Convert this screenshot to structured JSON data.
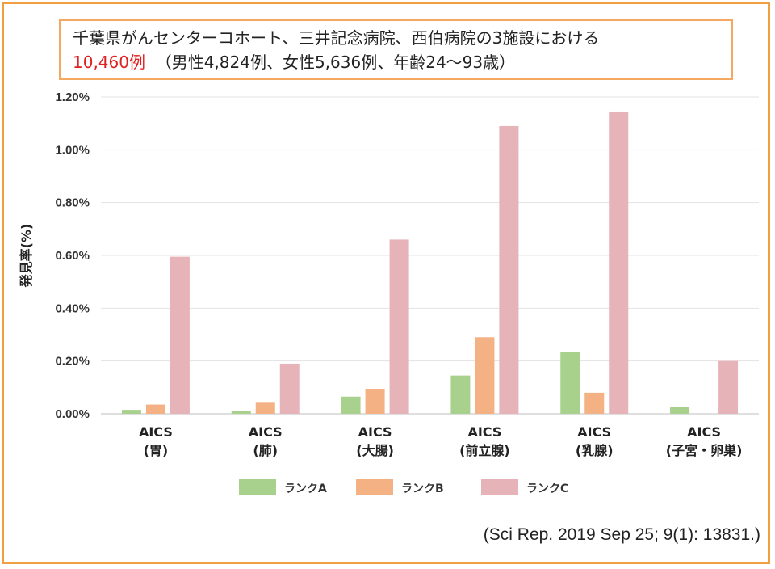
{
  "header": {
    "line1": "千葉県がんセンターコホート、三井記念病院、西伯病院の3施設における",
    "count_highlight": "10,460例",
    "line2_rest": "（男性4,824例、女性5,636例、年齢24〜93歳）"
  },
  "citation": "(Sci Rep. 2019 Sep 25; 9(1): 13831.)",
  "chart_data": {
    "type": "bar",
    "title": "",
    "xlabel": "",
    "ylabel": "発見率(%)",
    "ylim": [
      0,
      1.2
    ],
    "yticks": [
      0,
      0.2,
      0.4,
      0.6,
      0.8,
      1.0,
      1.2
    ],
    "ytick_labels": [
      "0.00%",
      "0.20%",
      "0.40%",
      "0.60%",
      "0.80%",
      "1.00%",
      "1.20%"
    ],
    "categories": [
      [
        "AICS",
        "(胃)"
      ],
      [
        "AICS",
        "(肺)"
      ],
      [
        "AICS",
        "(大腸)"
      ],
      [
        "AICS",
        "(前立腺)"
      ],
      [
        "AICS",
        "(乳腺)"
      ],
      [
        "AICS",
        "(子宮・卵巣)"
      ]
    ],
    "series": [
      {
        "name": "ランクA",
        "color": "#a9d18e",
        "values": [
          0.015,
          0.012,
          0.065,
          0.145,
          0.235,
          0.025
        ]
      },
      {
        "name": "ランクB",
        "color": "#f4b183",
        "values": [
          0.035,
          0.045,
          0.095,
          0.29,
          0.08,
          0
        ]
      },
      {
        "name": "ランクC",
        "color": "#e6b3b8",
        "values": [
          0.595,
          0.19,
          0.66,
          1.09,
          1.145,
          0.2
        ]
      }
    ],
    "grid": true,
    "legend_position": "bottom"
  }
}
